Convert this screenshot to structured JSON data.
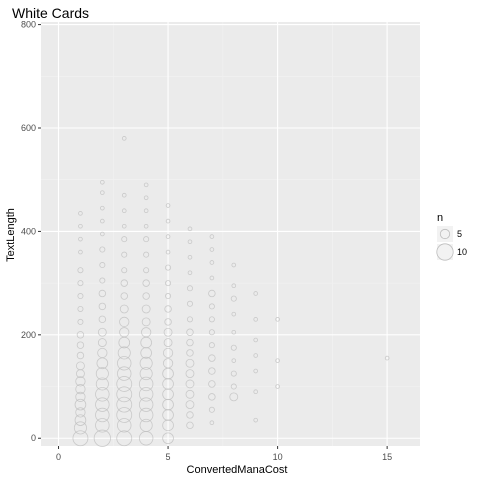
{
  "chart_data": {
    "type": "scatter",
    "title": "White Cards",
    "xlabel": "ConvertedManaCost",
    "ylabel": "TextLength",
    "xlim": [
      -0.8,
      16.5
    ],
    "ylim": [
      -15,
      805
    ],
    "x_ticks": [
      0,
      5,
      10,
      15
    ],
    "y_ticks": [
      0,
      200,
      400,
      600,
      800
    ],
    "grid": true,
    "legend_position": "right",
    "legend": {
      "title": "n",
      "entries": [
        {
          "label": "5",
          "size": 5
        },
        {
          "label": "10",
          "size": 10
        }
      ]
    },
    "colors": {
      "panel": "#ebebeb",
      "grid_major": "#ffffff",
      "grid_minor": "#f2f2f2",
      "point_stroke": "#bdbdbd"
    },
    "points": [
      {
        "x": 1,
        "y": 0,
        "n": 9
      },
      {
        "x": 1,
        "y": 20,
        "n": 7
      },
      {
        "x": 1,
        "y": 35,
        "n": 6
      },
      {
        "x": 1,
        "y": 50,
        "n": 5
      },
      {
        "x": 1,
        "y": 65,
        "n": 6
      },
      {
        "x": 1,
        "y": 80,
        "n": 5
      },
      {
        "x": 1,
        "y": 95,
        "n": 5
      },
      {
        "x": 1,
        "y": 110,
        "n": 5
      },
      {
        "x": 1,
        "y": 125,
        "n": 4
      },
      {
        "x": 1,
        "y": 140,
        "n": 4
      },
      {
        "x": 1,
        "y": 160,
        "n": 3
      },
      {
        "x": 1,
        "y": 180,
        "n": 3
      },
      {
        "x": 1,
        "y": 200,
        "n": 3
      },
      {
        "x": 1,
        "y": 225,
        "n": 2
      },
      {
        "x": 1,
        "y": 250,
        "n": 2
      },
      {
        "x": 1,
        "y": 275,
        "n": 2
      },
      {
        "x": 1,
        "y": 300,
        "n": 2
      },
      {
        "x": 1,
        "y": 325,
        "n": 2
      },
      {
        "x": 1,
        "y": 360,
        "n": 1
      },
      {
        "x": 1,
        "y": 385,
        "n": 1
      },
      {
        "x": 1,
        "y": 410,
        "n": 1
      },
      {
        "x": 1,
        "y": 435,
        "n": 1
      },
      {
        "x": 2,
        "y": 0,
        "n": 10
      },
      {
        "x": 2,
        "y": 25,
        "n": 8
      },
      {
        "x": 2,
        "y": 45,
        "n": 8
      },
      {
        "x": 2,
        "y": 65,
        "n": 8
      },
      {
        "x": 2,
        "y": 85,
        "n": 8
      },
      {
        "x": 2,
        "y": 105,
        "n": 7
      },
      {
        "x": 2,
        "y": 125,
        "n": 7
      },
      {
        "x": 2,
        "y": 145,
        "n": 6
      },
      {
        "x": 2,
        "y": 165,
        "n": 5
      },
      {
        "x": 2,
        "y": 185,
        "n": 4
      },
      {
        "x": 2,
        "y": 205,
        "n": 4
      },
      {
        "x": 2,
        "y": 230,
        "n": 3
      },
      {
        "x": 2,
        "y": 255,
        "n": 3
      },
      {
        "x": 2,
        "y": 280,
        "n": 3
      },
      {
        "x": 2,
        "y": 305,
        "n": 2
      },
      {
        "x": 2,
        "y": 335,
        "n": 2
      },
      {
        "x": 2,
        "y": 365,
        "n": 2
      },
      {
        "x": 2,
        "y": 395,
        "n": 1
      },
      {
        "x": 2,
        "y": 420,
        "n": 1
      },
      {
        "x": 2,
        "y": 445,
        "n": 1
      },
      {
        "x": 2,
        "y": 475,
        "n": 1
      },
      {
        "x": 2,
        "y": 495,
        "n": 1
      },
      {
        "x": 3,
        "y": 0,
        "n": 9
      },
      {
        "x": 3,
        "y": 25,
        "n": 8
      },
      {
        "x": 3,
        "y": 45,
        "n": 9
      },
      {
        "x": 3,
        "y": 65,
        "n": 9
      },
      {
        "x": 3,
        "y": 85,
        "n": 9
      },
      {
        "x": 3,
        "y": 105,
        "n": 9
      },
      {
        "x": 3,
        "y": 125,
        "n": 8
      },
      {
        "x": 3,
        "y": 145,
        "n": 8
      },
      {
        "x": 3,
        "y": 165,
        "n": 7
      },
      {
        "x": 3,
        "y": 185,
        "n": 6
      },
      {
        "x": 3,
        "y": 205,
        "n": 5
      },
      {
        "x": 3,
        "y": 225,
        "n": 5
      },
      {
        "x": 3,
        "y": 250,
        "n": 4
      },
      {
        "x": 3,
        "y": 275,
        "n": 3
      },
      {
        "x": 3,
        "y": 300,
        "n": 3
      },
      {
        "x": 3,
        "y": 325,
        "n": 2
      },
      {
        "x": 3,
        "y": 355,
        "n": 2
      },
      {
        "x": 3,
        "y": 385,
        "n": 2
      },
      {
        "x": 3,
        "y": 410,
        "n": 1
      },
      {
        "x": 3,
        "y": 440,
        "n": 1
      },
      {
        "x": 3,
        "y": 470,
        "n": 1
      },
      {
        "x": 3,
        "y": 580,
        "n": 1
      },
      {
        "x": 4,
        "y": 0,
        "n": 8
      },
      {
        "x": 4,
        "y": 25,
        "n": 7
      },
      {
        "x": 4,
        "y": 45,
        "n": 8
      },
      {
        "x": 4,
        "y": 65,
        "n": 8
      },
      {
        "x": 4,
        "y": 85,
        "n": 8
      },
      {
        "x": 4,
        "y": 105,
        "n": 8
      },
      {
        "x": 4,
        "y": 125,
        "n": 7
      },
      {
        "x": 4,
        "y": 145,
        "n": 7
      },
      {
        "x": 4,
        "y": 165,
        "n": 6
      },
      {
        "x": 4,
        "y": 185,
        "n": 6
      },
      {
        "x": 4,
        "y": 205,
        "n": 5
      },
      {
        "x": 4,
        "y": 225,
        "n": 4
      },
      {
        "x": 4,
        "y": 250,
        "n": 4
      },
      {
        "x": 4,
        "y": 275,
        "n": 3
      },
      {
        "x": 4,
        "y": 300,
        "n": 3
      },
      {
        "x": 4,
        "y": 325,
        "n": 2
      },
      {
        "x": 4,
        "y": 355,
        "n": 2
      },
      {
        "x": 4,
        "y": 385,
        "n": 2
      },
      {
        "x": 4,
        "y": 410,
        "n": 1
      },
      {
        "x": 4,
        "y": 440,
        "n": 1
      },
      {
        "x": 4,
        "y": 465,
        "n": 1
      },
      {
        "x": 4,
        "y": 490,
        "n": 1
      },
      {
        "x": 5,
        "y": 0,
        "n": 6
      },
      {
        "x": 5,
        "y": 25,
        "n": 6
      },
      {
        "x": 5,
        "y": 45,
        "n": 6
      },
      {
        "x": 5,
        "y": 65,
        "n": 6
      },
      {
        "x": 5,
        "y": 85,
        "n": 6
      },
      {
        "x": 5,
        "y": 105,
        "n": 6
      },
      {
        "x": 5,
        "y": 125,
        "n": 6
      },
      {
        "x": 5,
        "y": 145,
        "n": 5
      },
      {
        "x": 5,
        "y": 165,
        "n": 5
      },
      {
        "x": 5,
        "y": 185,
        "n": 4
      },
      {
        "x": 5,
        "y": 205,
        "n": 4
      },
      {
        "x": 5,
        "y": 225,
        "n": 3
      },
      {
        "x": 5,
        "y": 250,
        "n": 3
      },
      {
        "x": 5,
        "y": 275,
        "n": 2
      },
      {
        "x": 5,
        "y": 300,
        "n": 2
      },
      {
        "x": 5,
        "y": 330,
        "n": 2
      },
      {
        "x": 5,
        "y": 360,
        "n": 1
      },
      {
        "x": 5,
        "y": 390,
        "n": 1
      },
      {
        "x": 5,
        "y": 420,
        "n": 1
      },
      {
        "x": 5,
        "y": 450,
        "n": 1
      },
      {
        "x": 6,
        "y": 25,
        "n": 3
      },
      {
        "x": 6,
        "y": 45,
        "n": 3
      },
      {
        "x": 6,
        "y": 65,
        "n": 4
      },
      {
        "x": 6,
        "y": 85,
        "n": 4
      },
      {
        "x": 6,
        "y": 105,
        "n": 4
      },
      {
        "x": 6,
        "y": 125,
        "n": 4
      },
      {
        "x": 6,
        "y": 145,
        "n": 4
      },
      {
        "x": 6,
        "y": 165,
        "n": 3
      },
      {
        "x": 6,
        "y": 185,
        "n": 3
      },
      {
        "x": 6,
        "y": 205,
        "n": 3
      },
      {
        "x": 6,
        "y": 230,
        "n": 2
      },
      {
        "x": 6,
        "y": 260,
        "n": 2
      },
      {
        "x": 6,
        "y": 290,
        "n": 2
      },
      {
        "x": 6,
        "y": 320,
        "n": 1
      },
      {
        "x": 6,
        "y": 350,
        "n": 1
      },
      {
        "x": 6,
        "y": 380,
        "n": 1
      },
      {
        "x": 6,
        "y": 405,
        "n": 1
      },
      {
        "x": 7,
        "y": 30,
        "n": 1
      },
      {
        "x": 7,
        "y": 55,
        "n": 2
      },
      {
        "x": 7,
        "y": 80,
        "n": 3
      },
      {
        "x": 7,
        "y": 105,
        "n": 3
      },
      {
        "x": 7,
        "y": 130,
        "n": 3
      },
      {
        "x": 7,
        "y": 155,
        "n": 3
      },
      {
        "x": 7,
        "y": 180,
        "n": 2
      },
      {
        "x": 7,
        "y": 205,
        "n": 2
      },
      {
        "x": 7,
        "y": 230,
        "n": 2
      },
      {
        "x": 7,
        "y": 255,
        "n": 2
      },
      {
        "x": 7,
        "y": 280,
        "n": 3
      },
      {
        "x": 7,
        "y": 310,
        "n": 1
      },
      {
        "x": 7,
        "y": 340,
        "n": 1
      },
      {
        "x": 7,
        "y": 365,
        "n": 1
      },
      {
        "x": 7,
        "y": 390,
        "n": 1
      },
      {
        "x": 8,
        "y": 80,
        "n": 4
      },
      {
        "x": 8,
        "y": 100,
        "n": 2
      },
      {
        "x": 8,
        "y": 125,
        "n": 2
      },
      {
        "x": 8,
        "y": 150,
        "n": 1
      },
      {
        "x": 8,
        "y": 175,
        "n": 2
      },
      {
        "x": 8,
        "y": 205,
        "n": 1
      },
      {
        "x": 8,
        "y": 240,
        "n": 1
      },
      {
        "x": 8,
        "y": 270,
        "n": 2
      },
      {
        "x": 8,
        "y": 295,
        "n": 1
      },
      {
        "x": 8,
        "y": 335,
        "n": 1
      },
      {
        "x": 9,
        "y": 35,
        "n": 1
      },
      {
        "x": 9,
        "y": 90,
        "n": 1
      },
      {
        "x": 9,
        "y": 130,
        "n": 1
      },
      {
        "x": 9,
        "y": 160,
        "n": 1
      },
      {
        "x": 9,
        "y": 190,
        "n": 1
      },
      {
        "x": 9,
        "y": 230,
        "n": 1
      },
      {
        "x": 9,
        "y": 280,
        "n": 1
      },
      {
        "x": 10,
        "y": 100,
        "n": 1
      },
      {
        "x": 10,
        "y": 150,
        "n": 1
      },
      {
        "x": 10,
        "y": 230,
        "n": 1
      },
      {
        "x": 15,
        "y": 155,
        "n": 1
      }
    ]
  }
}
